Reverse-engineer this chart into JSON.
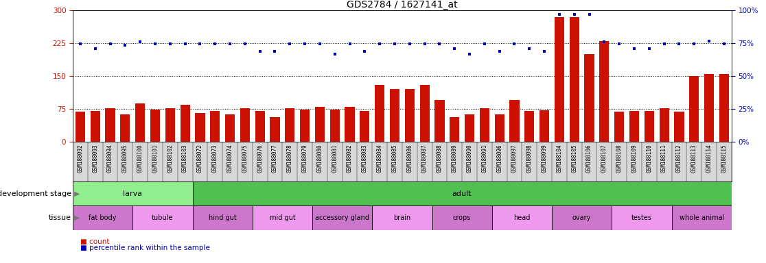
{
  "title": "GDS2784 / 1627141_at",
  "samples": [
    "GSM188092",
    "GSM188093",
    "GSM188094",
    "GSM188095",
    "GSM188100",
    "GSM188101",
    "GSM188102",
    "GSM188103",
    "GSM188072",
    "GSM188073",
    "GSM188074",
    "GSM188075",
    "GSM188076",
    "GSM188077",
    "GSM188078",
    "GSM188079",
    "GSM188080",
    "GSM188081",
    "GSM188082",
    "GSM188083",
    "GSM188084",
    "GSM188085",
    "GSM188086",
    "GSM188087",
    "GSM188088",
    "GSM188089",
    "GSM188090",
    "GSM188091",
    "GSM188096",
    "GSM188097",
    "GSM188098",
    "GSM188099",
    "GSM188104",
    "GSM188105",
    "GSM188106",
    "GSM188107",
    "GSM188108",
    "GSM188109",
    "GSM188110",
    "GSM188111",
    "GSM188112",
    "GSM188113",
    "GSM188114",
    "GSM188115"
  ],
  "counts": [
    68,
    70,
    77,
    63,
    88,
    74,
    77,
    85,
    66,
    70,
    63,
    77,
    70,
    57,
    77,
    74,
    80,
    73,
    80,
    70,
    130,
    120,
    120,
    130,
    95,
    57,
    63,
    77,
    63,
    95,
    70,
    72,
    285,
    285,
    200,
    230,
    68,
    70,
    70,
    77,
    68,
    150,
    155,
    155
  ],
  "percentile_ranks_left_scale": [
    224,
    213,
    224,
    220,
    228,
    224,
    224,
    224,
    224,
    224,
    224,
    224,
    206,
    206,
    224,
    224,
    224,
    200,
    224,
    206,
    224,
    224,
    224,
    224,
    224,
    213,
    200,
    224,
    206,
    224,
    213,
    206,
    290,
    290,
    290,
    228,
    224,
    213,
    213,
    224,
    224,
    224,
    230,
    224
  ],
  "dev_stage_groups": [
    {
      "label": "larva",
      "start": 0,
      "end": 8,
      "color": "#90EE90"
    },
    {
      "label": "adult",
      "start": 8,
      "end": 44,
      "color": "#50C050"
    }
  ],
  "tissue_groups": [
    {
      "label": "fat body",
      "start": 0,
      "end": 4,
      "color": "#CC77CC"
    },
    {
      "label": "tubule",
      "start": 4,
      "end": 8,
      "color": "#EE99EE"
    },
    {
      "label": "hind gut",
      "start": 8,
      "end": 12,
      "color": "#CC77CC"
    },
    {
      "label": "mid gut",
      "start": 12,
      "end": 16,
      "color": "#EE99EE"
    },
    {
      "label": "accessory gland",
      "start": 16,
      "end": 20,
      "color": "#CC77CC"
    },
    {
      "label": "brain",
      "start": 20,
      "end": 24,
      "color": "#EE99EE"
    },
    {
      "label": "crops",
      "start": 24,
      "end": 28,
      "color": "#CC77CC"
    },
    {
      "label": "head",
      "start": 28,
      "end": 32,
      "color": "#EE99EE"
    },
    {
      "label": "ovary",
      "start": 32,
      "end": 36,
      "color": "#CC77CC"
    },
    {
      "label": "testes",
      "start": 36,
      "end": 40,
      "color": "#EE99EE"
    },
    {
      "label": "whole animal",
      "start": 40,
      "end": 44,
      "color": "#CC77CC"
    }
  ],
  "bar_color": "#CC1100",
  "dot_color": "#0000BB",
  "left_ylim": [
    0,
    300
  ],
  "left_yticks": [
    0,
    75,
    150,
    225,
    300
  ],
  "right_ylim": [
    0,
    100
  ],
  "right_yticks": [
    0,
    25,
    50,
    75,
    100
  ],
  "right_yticklabels": [
    "0%",
    "25%",
    "50%",
    "75%",
    "100%"
  ],
  "title_fontsize": 10,
  "axis_tick_fontsize": 7.5,
  "sample_fontsize": 5.5,
  "row_label_fontsize": 8,
  "group_label_fontsize": 8,
  "tissue_label_fontsize": 7,
  "legend_fontsize": 7.5,
  "sample_bg_color": "#d8d8d8",
  "hline_color": "black"
}
